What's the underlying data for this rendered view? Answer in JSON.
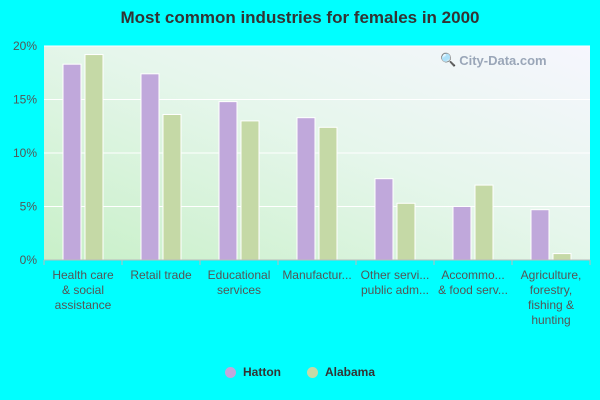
{
  "chart_data": {
    "type": "bar",
    "title": "Most common industries for females in 2000",
    "categories": [
      [
        "Health care",
        "& social",
        "assistance"
      ],
      [
        "Retail trade"
      ],
      [
        "Educational",
        "services"
      ],
      [
        "Manufactur..."
      ],
      [
        "Other servi...",
        "public adm..."
      ],
      [
        "Accommo...",
        "& food serv..."
      ],
      [
        "Agriculture,",
        "forestry,",
        "fishing &",
        "hunting"
      ]
    ],
    "series": [
      {
        "name": "Hatton",
        "color": "#C0A8DB",
        "values": [
          18.3,
          17.4,
          14.8,
          13.3,
          7.6,
          5.0,
          4.7
        ]
      },
      {
        "name": "Alabama",
        "color": "#C5D9A6",
        "values": [
          19.2,
          13.6,
          13.0,
          12.4,
          5.3,
          7.0,
          0.6
        ]
      }
    ],
    "yticks": [
      "0%",
      "5%",
      "10%",
      "15%",
      "20%"
    ],
    "ylim": [
      0,
      20
    ],
    "legend": "bottom-center"
  },
  "watermark": "City-Data.com"
}
